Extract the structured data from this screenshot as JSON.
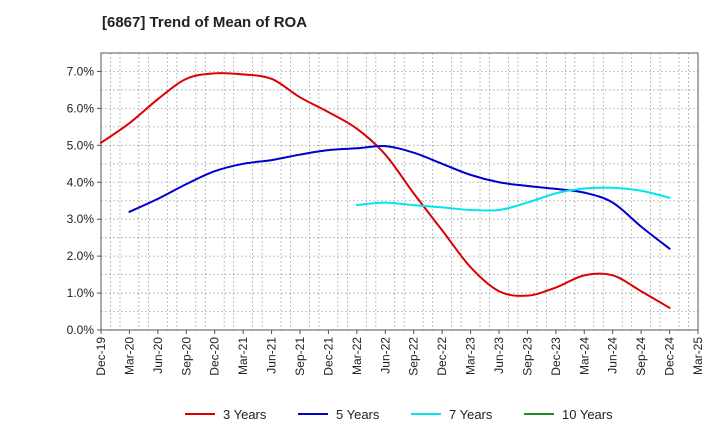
{
  "chart_data": {
    "type": "line",
    "title": "[6867]  Trend of Mean of ROA",
    "xlabel": "",
    "ylabel": "",
    "ylim": [
      0,
      7.5
    ],
    "yticks": [
      0,
      1,
      2,
      3,
      4,
      5,
      6,
      7
    ],
    "ytick_labels": [
      "0.0%",
      "1.0%",
      "2.0%",
      "3.0%",
      "4.0%",
      "5.0%",
      "6.0%",
      "7.0%"
    ],
    "categories": [
      "Dec-19",
      "Mar-20",
      "Jun-20",
      "Sep-20",
      "Dec-20",
      "Mar-21",
      "Jun-21",
      "Sep-21",
      "Dec-21",
      "Mar-22",
      "Jun-22",
      "Sep-22",
      "Dec-22",
      "Mar-23",
      "Jun-23",
      "Sep-23",
      "Dec-23",
      "Mar-24",
      "Jun-24",
      "Sep-24",
      "Dec-24",
      "Mar-25"
    ],
    "grid": true,
    "legend_position": "bottom",
    "series": [
      {
        "name": "3 Years",
        "color": "#dd0000",
        "values": [
          5.07,
          5.6,
          6.25,
          6.8,
          6.95,
          6.92,
          6.8,
          6.3,
          5.9,
          5.45,
          4.75,
          3.7,
          2.7,
          1.7,
          1.05,
          0.93,
          1.15,
          1.48,
          1.48,
          1.05,
          0.6,
          null
        ]
      },
      {
        "name": "5 Years",
        "color": "#0000cc",
        "values": [
          null,
          3.2,
          3.55,
          3.95,
          4.3,
          4.5,
          4.6,
          4.75,
          4.87,
          4.92,
          4.98,
          4.8,
          4.5,
          4.2,
          4.0,
          3.9,
          3.82,
          3.72,
          3.45,
          2.8,
          2.2,
          null
        ]
      },
      {
        "name": "7 Years",
        "color": "#00e5ee",
        "values": [
          null,
          null,
          null,
          null,
          null,
          null,
          null,
          null,
          null,
          3.38,
          3.45,
          3.38,
          3.32,
          3.25,
          3.25,
          3.45,
          3.7,
          3.83,
          3.85,
          3.77,
          3.58,
          null
        ]
      },
      {
        "name": "10 Years",
        "color": "#228b22",
        "values": [
          null,
          null,
          null,
          null,
          null,
          null,
          null,
          null,
          null,
          null,
          null,
          null,
          null,
          null,
          null,
          null,
          null,
          null,
          null,
          null,
          null,
          null
        ]
      }
    ]
  }
}
